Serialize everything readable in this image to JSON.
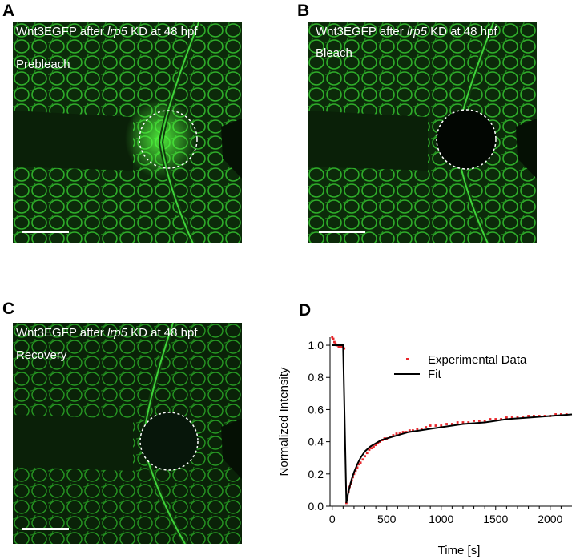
{
  "panels": [
    {
      "letter": "A",
      "caption_pre": "Wnt3EGFP after ",
      "caption_gene": "lrp5",
      "caption_post": " KD at 48 hpf",
      "stage": "Prebleach"
    },
    {
      "letter": "B",
      "caption_pre": "Wnt3EGFP after ",
      "caption_gene": "lrp5",
      "caption_post": " KD at 48 hpf",
      "stage": "Bleach"
    },
    {
      "letter": "C",
      "caption_pre": "Wnt3EGFP after ",
      "caption_gene": "lrp5",
      "caption_post": " KD at 48 hpf",
      "stage": "Recovery"
    }
  ],
  "chart_letter": "D",
  "colors": {
    "egfp": "#3fd43a",
    "data": "#e8262b",
    "fit": "#000000"
  },
  "chart_data": {
    "type": "scatter",
    "xlabel": "Time [s]",
    "ylabel": "Normalized Intensity",
    "xlim": [
      -20,
      2200
    ],
    "ylim": [
      0,
      1.05
    ],
    "xticks": [
      0,
      500,
      1000,
      1500,
      2000
    ],
    "yticks": [
      0.0,
      0.2,
      0.4,
      0.6,
      0.8,
      1.0
    ],
    "legend_position": "top-right",
    "series": [
      {
        "name": "Experimental Data",
        "style": "points",
        "x": [
          0,
          10,
          20,
          30,
          40,
          50,
          60,
          70,
          80,
          90,
          100,
          110,
          130,
          140,
          150,
          160,
          170,
          180,
          190,
          200,
          215,
          230,
          245,
          260,
          280,
          300,
          320,
          340,
          360,
          380,
          400,
          420,
          440,
          460,
          480,
          500,
          530,
          560,
          590,
          620,
          650,
          680,
          710,
          740,
          780,
          820,
          860,
          900,
          950,
          1000,
          1050,
          1100,
          1150,
          1200,
          1250,
          1300,
          1350,
          1400,
          1450,
          1500,
          1550,
          1600,
          1650,
          1700,
          1750,
          1800,
          1850,
          1900,
          1950,
          2000,
          2050,
          2100,
          2150
        ],
        "y": [
          1.05,
          1.04,
          1.02,
          1.01,
          1.0,
          1.0,
          0.99,
          0.99,
          1.0,
          0.99,
          0.99,
          0.98,
          0.02,
          0.06,
          0.09,
          0.12,
          0.14,
          0.16,
          0.18,
          0.2,
          0.22,
          0.24,
          0.26,
          0.27,
          0.29,
          0.31,
          0.33,
          0.35,
          0.36,
          0.37,
          0.38,
          0.39,
          0.4,
          0.41,
          0.42,
          0.42,
          0.43,
          0.44,
          0.45,
          0.45,
          0.46,
          0.46,
          0.47,
          0.47,
          0.48,
          0.48,
          0.49,
          0.5,
          0.5,
          0.5,
          0.51,
          0.51,
          0.52,
          0.52,
          0.52,
          0.53,
          0.53,
          0.53,
          0.54,
          0.54,
          0.54,
          0.55,
          0.55,
          0.55,
          0.55,
          0.56,
          0.56,
          0.56,
          0.56,
          0.56,
          0.57,
          0.57,
          0.57
        ]
      },
      {
        "name": "Fit",
        "style": "line",
        "x": [
          0,
          50,
          100,
          130,
          140,
          160,
          180,
          200,
          230,
          260,
          300,
          350,
          400,
          450,
          500,
          600,
          700,
          800,
          900,
          1000,
          1200,
          1400,
          1600,
          1800,
          2000,
          2200
        ],
        "y": [
          1.0,
          1.0,
          1.0,
          0.02,
          0.06,
          0.12,
          0.17,
          0.21,
          0.26,
          0.3,
          0.34,
          0.37,
          0.39,
          0.41,
          0.42,
          0.44,
          0.46,
          0.47,
          0.48,
          0.49,
          0.51,
          0.52,
          0.54,
          0.55,
          0.56,
          0.57
        ]
      }
    ]
  }
}
